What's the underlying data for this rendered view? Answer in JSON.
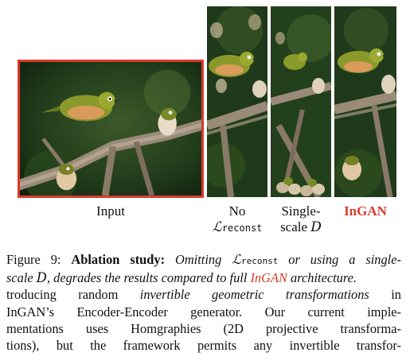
{
  "figure": {
    "captions": {
      "input": "Input",
      "no_line1": "No",
      "no_symbol": "ℒ",
      "no_subscript": "reconst",
      "single_line1": "Single-",
      "single_line2_text": "scale ",
      "single_line2_symbol": "D",
      "ingan": "InGAN"
    },
    "colors": {
      "highlight_red": "#d93a2b",
      "foliage_dark": "#1f3a1a",
      "bird_green": "#8a9a2a"
    }
  },
  "text": {
    "fig_label": "Figure 9: ",
    "fig_bold": "Ablation study:",
    "cap_l1_a": " Omitting ",
    "cap_l1_sym": "ℒ",
    "cap_l1_sub": "reconst",
    "cap_l1_b": " or using a single-",
    "cap_l2_a": "scale ",
    "cap_l2_sym": "D",
    "cap_l2_b": ", degrades the results compared to full ",
    "cap_l2_red": "InGAN",
    "cap_l2_c": " architecture.",
    "body_l1_a": "troducing random ",
    "body_l1_it": "invertible geometric transformations",
    "body_l1_b": " in",
    "body_l2": "InGAN’s Encoder-Encoder generator.  Our current imple-",
    "body_l3": "mentations uses Homgraphies (2D projective transforma-",
    "body_l4": "tions), but the framework permits any invertible transfor-"
  }
}
